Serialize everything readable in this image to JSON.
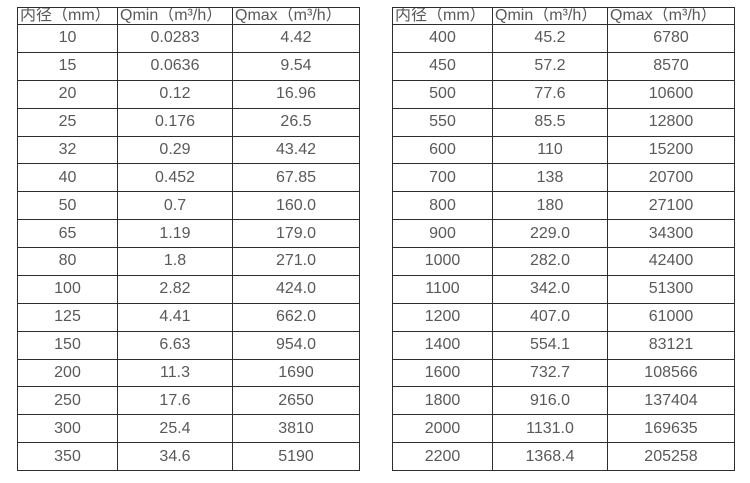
{
  "page": {
    "background": "#ffffff",
    "text_color": "#595959",
    "border_color": "#2e2e2e"
  },
  "tables": [
    {
      "name": "flow-table-small-diameters",
      "headers": [
        "内径（mm）",
        "Qmin（m³/h）",
        "Qmax（m³/h）"
      ],
      "rows": [
        [
          "10",
          "0.0283",
          "4.42"
        ],
        [
          "15",
          "0.0636",
          "9.54"
        ],
        [
          "20",
          "0.12",
          "16.96"
        ],
        [
          "25",
          "0.176",
          "26.5"
        ],
        [
          "32",
          "0.29",
          "43.42"
        ],
        [
          "40",
          "0.452",
          "67.85"
        ],
        [
          "50",
          "0.7",
          "160.0"
        ],
        [
          "65",
          "1.19",
          "179.0"
        ],
        [
          "80",
          "1.8",
          "271.0"
        ],
        [
          "100",
          "2.82",
          "424.0"
        ],
        [
          "125",
          "4.41",
          "662.0"
        ],
        [
          "150",
          "6.63",
          "954.0"
        ],
        [
          "200",
          "11.3",
          "1690"
        ],
        [
          "250",
          "17.6",
          "2650"
        ],
        [
          "300",
          "25.4",
          "3810"
        ],
        [
          "350",
          "34.6",
          "5190"
        ]
      ]
    },
    {
      "name": "flow-table-large-diameters",
      "headers": [
        "内径（mm）",
        "Qmin（m³/h）",
        "Qmax（m³/h）"
      ],
      "rows": [
        [
          "400",
          "45.2",
          "6780"
        ],
        [
          "450",
          "57.2",
          "8570"
        ],
        [
          "500",
          "77.6",
          "10600"
        ],
        [
          "550",
          "85.5",
          "12800"
        ],
        [
          "600",
          "110",
          "15200"
        ],
        [
          "700",
          "138",
          "20700"
        ],
        [
          "800",
          "180",
          "27100"
        ],
        [
          "900",
          "229.0",
          "34300"
        ],
        [
          "1000",
          "282.0",
          "42400"
        ],
        [
          "1100",
          "342.0",
          "51300"
        ],
        [
          "1200",
          "407.0",
          "61000"
        ],
        [
          "1400",
          "554.1",
          "83121"
        ],
        [
          "1600",
          "732.7",
          "108566"
        ],
        [
          "1800",
          "916.0",
          "137404"
        ],
        [
          "2000",
          "1131.0",
          "169635"
        ],
        [
          "2200",
          "1368.4",
          "205258"
        ]
      ]
    }
  ]
}
